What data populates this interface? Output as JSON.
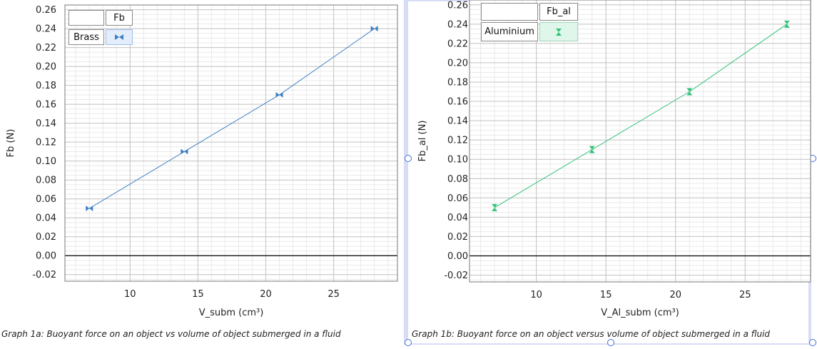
{
  "charts": {
    "a": {
      "caption": "Graph 1a: Buoyant force on an object vs volume of object submerged in a fluid",
      "legend": {
        "header": "Fb",
        "row_label": "Brass",
        "icon": "bowtie-marker-icon"
      }
    },
    "b": {
      "caption": "Graph 1b: Buoyant force on an object versus volume of object submerged in a fluid",
      "legend": {
        "header": "Fb_al",
        "row_label": "Aluminium",
        "icon": "hourglass-marker-icon"
      }
    }
  },
  "chart_data": [
    {
      "type": "scatter",
      "title": "",
      "xlabel": "V_subm (cm³)",
      "ylabel": "Fb (N)",
      "xlim": [
        5.2,
        29.7
      ],
      "ylim": [
        -0.027,
        0.265
      ],
      "xticks": [
        "10",
        "15",
        "20",
        "25"
      ],
      "yticks": [
        "-0.02",
        "0.00",
        "0.02",
        "0.04",
        "0.06",
        "0.08",
        "0.10",
        "0.12",
        "0.14",
        "0.16",
        "0.18",
        "0.20",
        "0.22",
        "0.24",
        "0.26"
      ],
      "grid": true,
      "legend_position": "top-left",
      "fit_line": true,
      "series": [
        {
          "name": "Fb",
          "legend_label": "Brass",
          "color": "#3f7fc4",
          "marker": "bowtie",
          "x": [
            7,
            14,
            21,
            28
          ],
          "y": [
            0.05,
            0.11,
            0.17,
            0.24
          ]
        }
      ]
    },
    {
      "type": "scatter",
      "title": "",
      "xlabel": "V_Al_subm (cm³)",
      "ylabel": "Fb_al (N)",
      "xlim": [
        5.2,
        29.7
      ],
      "ylim": [
        -0.027,
        0.265
      ],
      "xticks": [
        "10",
        "15",
        "20",
        "25"
      ],
      "yticks": [
        "-0.02",
        "0.00",
        "0.02",
        "0.04",
        "0.06",
        "0.08",
        "0.10",
        "0.12",
        "0.14",
        "0.16",
        "0.18",
        "0.20",
        "0.22",
        "0.24",
        "0.26"
      ],
      "grid": true,
      "legend_position": "top-left",
      "fit_line": true,
      "series": [
        {
          "name": "Fb_al",
          "legend_label": "Aluminium",
          "color": "#33c27a",
          "marker": "hourglass",
          "x": [
            7,
            14,
            21,
            28
          ],
          "y": [
            0.05,
            0.11,
            0.17,
            0.24
          ]
        }
      ]
    }
  ]
}
